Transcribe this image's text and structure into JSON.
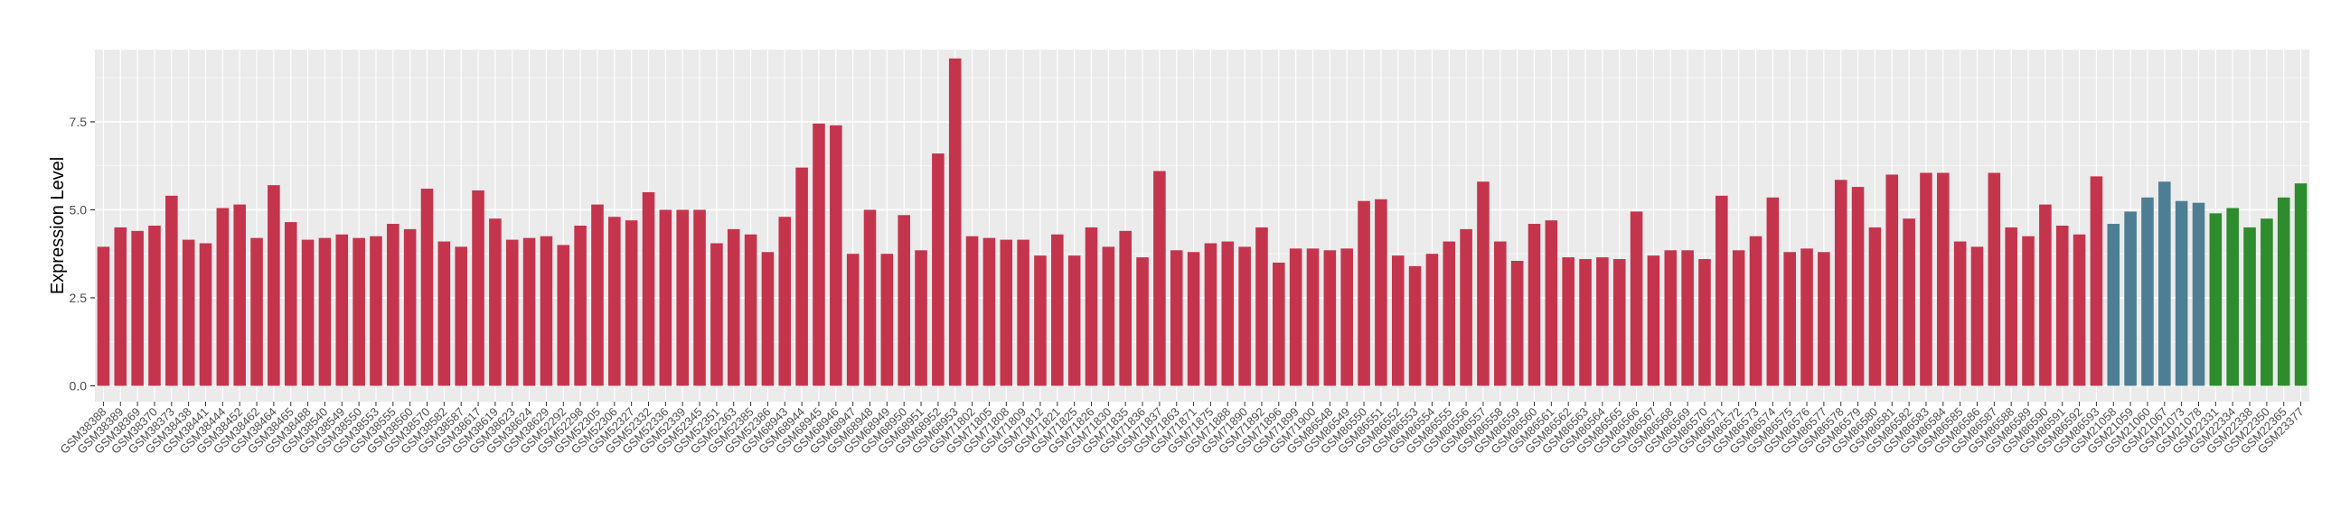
{
  "chart_data": {
    "type": "bar",
    "title": "",
    "xlabel": "",
    "ylabel": "Expression Level",
    "ylim": [
      -0.45,
      9.55
    ],
    "yticks": [
      0.0,
      2.5,
      5.0,
      7.5
    ],
    "ytick_labels": [
      "0.0",
      "2.5",
      "5.0",
      "7.5"
    ],
    "grid": true,
    "legend": "none",
    "colors": {
      "panel_background": "#ebebeb",
      "grid": "#ffffff",
      "group1": "#c5344d",
      "group2": "#4d7e93",
      "group3": "#2e8b2e"
    },
    "categories": [
      "GSM38388",
      "GSM38389",
      "GSM38369",
      "GSM38370",
      "GSM38373",
      "GSM38438",
      "GSM38441",
      "GSM38444",
      "GSM38452",
      "GSM38462",
      "GSM38464",
      "GSM38465",
      "GSM38488",
      "GSM38540",
      "GSM38549",
      "GSM38550",
      "GSM38553",
      "GSM38555",
      "GSM38560",
      "GSM38570",
      "GSM38582",
      "GSM38587",
      "GSM38617",
      "GSM38619",
      "GSM38623",
      "GSM38624",
      "GSM38629",
      "GSM52292",
      "GSM52298",
      "GSM52305",
      "GSM52306",
      "GSM52327",
      "GSM52332",
      "GSM52336",
      "GSM52339",
      "GSM52345",
      "GSM52351",
      "GSM52363",
      "GSM52385",
      "GSM52386",
      "GSM68943",
      "GSM68944",
      "GSM68945",
      "GSM68946",
      "GSM68947",
      "GSM68948",
      "GSM68949",
      "GSM68950",
      "GSM68951",
      "GSM68952",
      "GSM68953",
      "GSM71802",
      "GSM71805",
      "GSM71808",
      "GSM71809",
      "GSM71812",
      "GSM71821",
      "GSM71825",
      "GSM71826",
      "GSM71830",
      "GSM71835",
      "GSM71836",
      "GSM71837",
      "GSM71863",
      "GSM71871",
      "GSM71875",
      "GSM71888",
      "GSM71890",
      "GSM71892",
      "GSM71896",
      "GSM71899",
      "GSM71900",
      "GSM86548",
      "GSM86549",
      "GSM86550",
      "GSM86551",
      "GSM86552",
      "GSM86553",
      "GSM86554",
      "GSM86555",
      "GSM86556",
      "GSM86557",
      "GSM86558",
      "GSM86559",
      "GSM86560",
      "GSM86561",
      "GSM86562",
      "GSM86563",
      "GSM86564",
      "GSM86565",
      "GSM86566",
      "GSM86567",
      "GSM86568",
      "GSM86569",
      "GSM86570",
      "GSM86571",
      "GSM86572",
      "GSM86573",
      "GSM86574",
      "GSM86575",
      "GSM86576",
      "GSM86577",
      "GSM86578",
      "GSM86579",
      "GSM86580",
      "GSM86581",
      "GSM86582",
      "GSM86583",
      "GSM86584",
      "GSM86585",
      "GSM86586",
      "GSM86587",
      "GSM86588",
      "GSM86589",
      "GSM86590",
      "GSM86591",
      "GSM86592",
      "GSM86593",
      "GSM21058",
      "GSM21059",
      "GSM21060",
      "GSM21067",
      "GSM21073",
      "GSM21078",
      "GSM22331",
      "GSM22334",
      "GSM22338",
      "GSM22350",
      "GSM22365",
      "GSM23377"
    ],
    "values": [
      3.95,
      4.5,
      4.4,
      4.55,
      5.4,
      4.15,
      4.05,
      5.05,
      5.15,
      4.2,
      5.7,
      4.65,
      4.15,
      4.2,
      4.3,
      4.2,
      4.25,
      4.6,
      4.45,
      5.6,
      4.1,
      3.95,
      5.55,
      4.75,
      4.15,
      4.2,
      4.25,
      4.0,
      4.55,
      5.15,
      4.8,
      4.7,
      5.5,
      5.0,
      5.0,
      5.0,
      4.05,
      4.45,
      4.3,
      3.8,
      4.8,
      6.2,
      7.45,
      7.4,
      3.75,
      5.0,
      3.75,
      4.85,
      3.85,
      6.6,
      9.3,
      4.25,
      4.2,
      4.15,
      4.15,
      3.7,
      4.3,
      3.7,
      4.5,
      3.95,
      4.4,
      3.65,
      6.1,
      3.85,
      3.8,
      4.05,
      4.1,
      3.95,
      4.5,
      3.5,
      3.9,
      3.9,
      3.85,
      3.9,
      5.25,
      5.3,
      3.7,
      3.4,
      3.75,
      4.1,
      4.45,
      5.8,
      4.1,
      3.55,
      4.6,
      4.7,
      3.65,
      3.6,
      3.65,
      3.6,
      4.95,
      3.7,
      3.85,
      3.85,
      3.6,
      5.4,
      3.85,
      4.25,
      5.35,
      3.8,
      3.9,
      3.8,
      5.85,
      5.65,
      4.5,
      6.0,
      4.75,
      6.05,
      6.05,
      4.1,
      3.95,
      6.05,
      4.5,
      4.25,
      5.15,
      4.55,
      4.3,
      5.95,
      4.6,
      4.95,
      5.35,
      5.8,
      5.25,
      5.2,
      4.9,
      5.05,
      4.5,
      4.75,
      5.35,
      5.75
    ],
    "groups": [
      "group1",
      "group1",
      "group1",
      "group1",
      "group1",
      "group1",
      "group1",
      "group1",
      "group1",
      "group1",
      "group1",
      "group1",
      "group1",
      "group1",
      "group1",
      "group1",
      "group1",
      "group1",
      "group1",
      "group1",
      "group1",
      "group1",
      "group1",
      "group1",
      "group1",
      "group1",
      "group1",
      "group1",
      "group1",
      "group1",
      "group1",
      "group1",
      "group1",
      "group1",
      "group1",
      "group1",
      "group1",
      "group1",
      "group1",
      "group1",
      "group1",
      "group1",
      "group1",
      "group1",
      "group1",
      "group1",
      "group1",
      "group1",
      "group1",
      "group1",
      "group1",
      "group1",
      "group1",
      "group1",
      "group1",
      "group1",
      "group1",
      "group1",
      "group1",
      "group1",
      "group1",
      "group1",
      "group1",
      "group1",
      "group1",
      "group1",
      "group1",
      "group1",
      "group1",
      "group1",
      "group1",
      "group1",
      "group1",
      "group1",
      "group1",
      "group1",
      "group1",
      "group1",
      "group1",
      "group1",
      "group1",
      "group1",
      "group1",
      "group1",
      "group1",
      "group1",
      "group1",
      "group1",
      "group1",
      "group1",
      "group1",
      "group1",
      "group1",
      "group1",
      "group1",
      "group1",
      "group1",
      "group1",
      "group1",
      "group1",
      "group1",
      "group1",
      "group1",
      "group1",
      "group1",
      "group1",
      "group1",
      "group1",
      "group1",
      "group1",
      "group1",
      "group1",
      "group1",
      "group1",
      "group1",
      "group1",
      "group1",
      "group1",
      "group2",
      "group2",
      "group2",
      "group2",
      "group2",
      "group2",
      "group3",
      "group3",
      "group3",
      "group3",
      "group3",
      "group3"
    ]
  }
}
